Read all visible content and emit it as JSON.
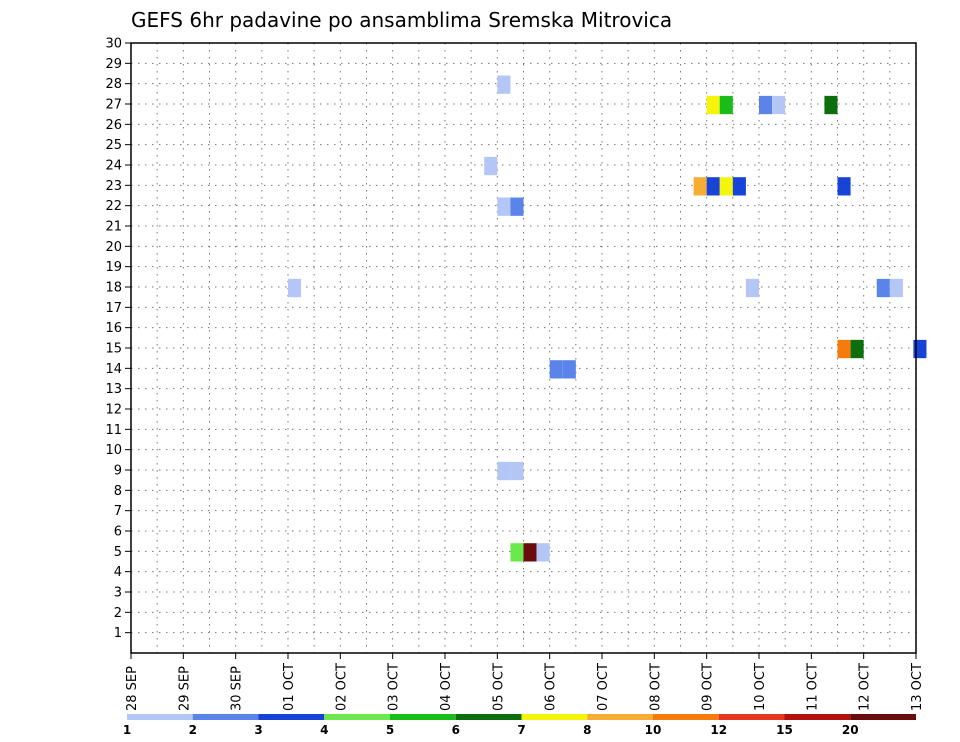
{
  "chart_data": {
    "type": "heatmap",
    "title": "GEFS 6hr padavine po ansamblima Sremska Mitrovica",
    "xlabel": "",
    "ylabel": "",
    "x_tick_labels": [
      "28 SEP",
      "29 SEP",
      "30 SEP",
      "01 OCT",
      "02 OCT",
      "03 OCT",
      "04 OCT",
      "05 OCT",
      "06 OCT",
      "07 OCT",
      "08 OCT",
      "09 OCT",
      "10 OCT",
      "11 OCT",
      "12 OCT",
      "13 OCT"
    ],
    "x_range_days": [
      0,
      15
    ],
    "y_range": [
      0,
      30
    ],
    "y_ticks": [
      1,
      2,
      3,
      4,
      5,
      6,
      7,
      8,
      9,
      10,
      11,
      12,
      13,
      14,
      15,
      16,
      17,
      18,
      19,
      20,
      21,
      22,
      23,
      24,
      25,
      26,
      27,
      28,
      29,
      30
    ],
    "time_step_hours": 6,
    "grid": true,
    "colorbar": {
      "position": "bottom",
      "levels": [
        1,
        2,
        3,
        4,
        5,
        6,
        7,
        8,
        10,
        12,
        15,
        20
      ],
      "colors": [
        "#b3c6f5",
        "#5b84ea",
        "#1744d6",
        "#6ae84c",
        "#18bd18",
        "#0c6e0c",
        "#f5f50c",
        "#f7ad33",
        "#f77a0c",
        "#e6361f",
        "#b3120c",
        "#6b0c0c"
      ]
    },
    "cells": [
      {
        "day": 7.0,
        "member": 28,
        "level": 1
      },
      {
        "day": 11.0,
        "member": 27,
        "level": 7
      },
      {
        "day": 11.25,
        "member": 27,
        "level": 5
      },
      {
        "day": 12.0,
        "member": 27,
        "level": 2
      },
      {
        "day": 12.25,
        "member": 27,
        "level": 1
      },
      {
        "day": 13.25,
        "member": 27,
        "level": 6
      },
      {
        "day": 6.75,
        "member": 24,
        "level": 1
      },
      {
        "day": 10.75,
        "member": 23,
        "level": 8
      },
      {
        "day": 11.0,
        "member": 23,
        "level": 3
      },
      {
        "day": 11.25,
        "member": 23,
        "level": 7
      },
      {
        "day": 11.5,
        "member": 23,
        "level": 3
      },
      {
        "day": 13.5,
        "member": 23,
        "level": 3
      },
      {
        "day": 7.0,
        "member": 22,
        "level": 1
      },
      {
        "day": 7.25,
        "member": 22,
        "level": 2
      },
      {
        "day": 3.0,
        "member": 18,
        "level": 1
      },
      {
        "day": 11.75,
        "member": 18,
        "level": 1
      },
      {
        "day": 14.25,
        "member": 18,
        "level": 2
      },
      {
        "day": 14.5,
        "member": 18,
        "level": 1
      },
      {
        "day": 13.5,
        "member": 15,
        "level": 10
      },
      {
        "day": 13.75,
        "member": 15,
        "level": 6
      },
      {
        "day": 14.95,
        "member": 15,
        "level": 3
      },
      {
        "day": 8.0,
        "member": 14,
        "level": 2
      },
      {
        "day": 8.25,
        "member": 14,
        "level": 2
      },
      {
        "day": 7.0,
        "member": 9,
        "level": 1
      },
      {
        "day": 7.25,
        "member": 9,
        "level": 1
      },
      {
        "day": 7.25,
        "member": 5,
        "level": 4
      },
      {
        "day": 7.5,
        "member": 5,
        "level": 20
      },
      {
        "day": 7.75,
        "member": 5,
        "level": 1
      }
    ]
  }
}
